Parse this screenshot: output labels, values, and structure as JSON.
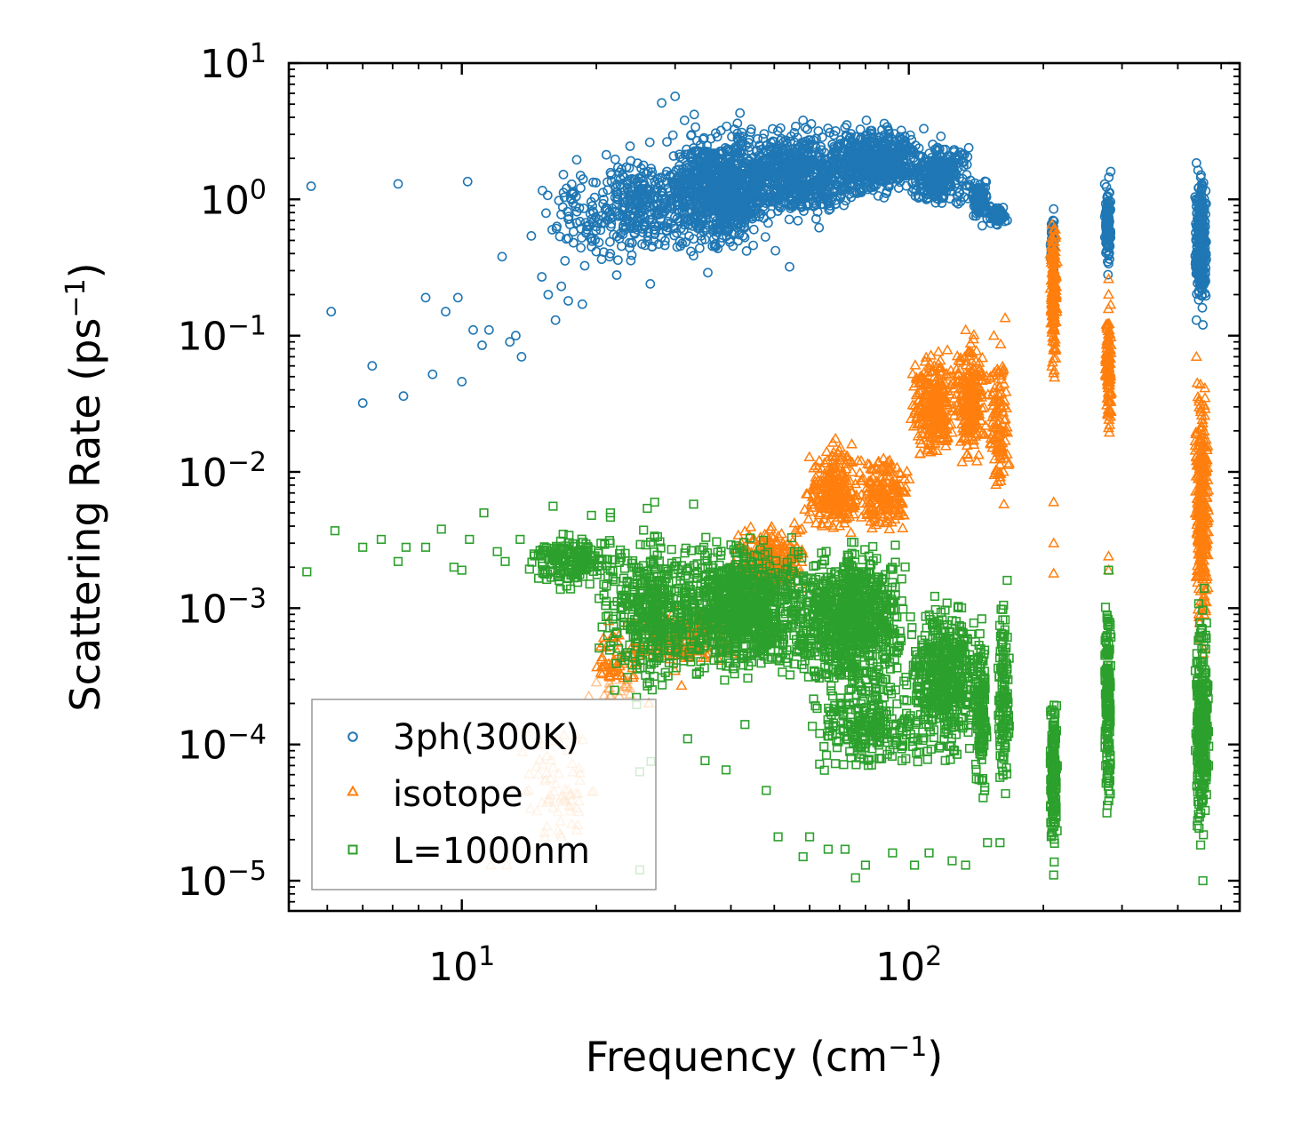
{
  "chart_data": {
    "type": "scatter",
    "title": "",
    "xlabel": "Frequency (cm",
    "xlabel_sup": "−1",
    "xlabel_end": ")",
    "ylabel": "Scattering Rate (ps",
    "ylabel_sup": "−1",
    "ylabel_end": ")",
    "xscale": "log",
    "yscale": "log",
    "xlim": [
      4.1,
      550
    ],
    "ylim": [
      6e-06,
      10
    ],
    "x_ticks": [
      {
        "base": "10",
        "exp": "1",
        "value": 10
      },
      {
        "base": "10",
        "exp": "2",
        "value": 100
      }
    ],
    "y_ticks": [
      {
        "base": "10",
        "exp": "1",
        "value": 10
      },
      {
        "base": "10",
        "exp": "0",
        "value": 1
      },
      {
        "base": "10",
        "exp": "−1",
        "value": 0.1
      },
      {
        "base": "10",
        "exp": "−2",
        "value": 0.01
      },
      {
        "base": "10",
        "exp": "−3",
        "value": 0.001
      },
      {
        "base": "10",
        "exp": "−4",
        "value": 0.0001
      },
      {
        "base": "10",
        "exp": "−5",
        "value": 1e-05
      }
    ],
    "legend_position": "bottom-left",
    "series": [
      {
        "name": "3ph(300K)",
        "marker": "circle",
        "color": "#1f77b4",
        "points": [
          [
            4.6,
            1.25
          ],
          [
            5.1,
            0.15
          ],
          [
            6,
            0.032
          ],
          [
            6.3,
            0.06
          ],
          [
            7.2,
            1.3
          ],
          [
            7.4,
            0.036
          ],
          [
            8.3,
            0.19
          ],
          [
            8.6,
            0.052
          ],
          [
            9.2,
            0.15
          ],
          [
            9.8,
            0.19
          ],
          [
            10,
            0.046
          ],
          [
            10.3,
            1.35
          ],
          [
            10.6,
            0.11
          ],
          [
            11.1,
            0.085
          ],
          [
            11.5,
            0.11
          ],
          [
            12.3,
            0.38
          ],
          [
            12.8,
            0.09
          ],
          [
            13.2,
            0.1
          ],
          [
            13.6,
            0.07
          ],
          [
            14.3,
            0.54
          ],
          [
            15.1,
            0.27
          ],
          [
            15.6,
            0.2
          ],
          [
            16.2,
            0.13
          ],
          [
            16.7,
            0.23
          ],
          [
            17.3,
            0.18
          ],
          [
            18.6,
            0.17
          ],
          [
            19.5,
            0.45
          ],
          [
            21.4,
            0.38
          ],
          [
            24,
            0.39
          ],
          [
            26.4,
            0.24
          ],
          [
            28,
            5.1
          ],
          [
            30,
            5.7
          ],
          [
            31.5,
            3.8
          ],
          [
            33.1,
            4.2
          ],
          [
            35.5,
            0.29
          ],
          [
            38,
            3.2
          ],
          [
            41.9,
            4.3
          ],
          [
            45,
            0.6
          ],
          [
            50.3,
            0.42
          ],
          [
            54.1,
            0.32
          ],
          [
            58,
            3.8
          ],
          [
            63,
            0.62
          ],
          [
            71.5,
            1.5
          ],
          [
            80.4,
            3.8
          ],
          [
            89.5,
            3.4
          ],
          [
            98,
            2.9
          ],
          [
            108,
            3.3
          ],
          [
            118,
            2.9
          ],
          [
            126,
            2.3
          ],
          [
            135,
            1.8
          ],
          [
            146,
            0.64
          ],
          [
            158,
            0.75
          ],
          [
            166,
            0.7
          ],
          [
            211,
            0.3
          ],
          [
            211,
            0.85
          ],
          [
            211,
            0.4
          ],
          [
            279,
            1.05
          ],
          [
            283,
            1.6
          ],
          [
            279,
            0.28
          ],
          [
            279,
            0.55
          ],
          [
            440,
            1.85
          ],
          [
            440,
            0.13
          ],
          [
            440,
            0.5
          ],
          [
            455,
            0.9
          ],
          [
            455,
            0.12
          ]
        ],
        "clusters": [
          {
            "x": [
              15,
              25
            ],
            "y": [
              0.2,
              2.5
            ],
            "n": 110
          },
          {
            "x": [
              20,
              32
            ],
            "y": [
              0.3,
              3.0
            ],
            "n": 240
          },
          {
            "x": [
              28,
              50
            ],
            "y": [
              0.35,
              4.0
            ],
            "n": 900
          },
          {
            "x": [
              40,
              80
            ],
            "y": [
              0.6,
              4.0
            ],
            "n": 700
          },
          {
            "x": [
              65,
              110
            ],
            "y": [
              0.9,
              4.0
            ],
            "n": 500
          },
          {
            "x": [
              100,
              140
            ],
            "y": [
              0.8,
              2.9
            ],
            "n": 260
          },
          {
            "x": [
              138,
              150
            ],
            "y": [
              0.62,
              1.5
            ],
            "n": 120
          },
          {
            "x": [
              150,
              165
            ],
            "y": [
              0.62,
              0.95
            ],
            "n": 70
          },
          {
            "x": [
              207,
              213
            ],
            "y": [
              0.3,
              0.9
            ],
            "n": 40
          },
          {
            "x": [
              274,
              284
            ],
            "y": [
              0.28,
              1.6
            ],
            "n": 140
          },
          {
            "x": [
              436,
              465
            ],
            "y": [
              0.12,
              1.9
            ],
            "n": 320
          }
        ]
      },
      {
        "name": "isotope",
        "marker": "triangle",
        "color": "#ff7f0e",
        "points": [
          [
            11.6,
            1.3e-05
          ],
          [
            12.6,
            1.3e-05
          ],
          [
            15.5,
            2.5e-05
          ],
          [
            16.6,
            2.2e-05
          ],
          [
            17.6,
            2.6e-05
          ],
          [
            26.2,
            0.0002
          ],
          [
            31,
            0.00027
          ],
          [
            44,
            0.0034
          ],
          [
            55,
            0.0024
          ],
          [
            62,
            0.0042
          ],
          [
            154,
            0.023
          ],
          [
            211,
            0.006
          ],
          [
            211,
            0.003
          ],
          [
            211,
            0.0018
          ],
          [
            211,
            0.053
          ],
          [
            211,
            0.068
          ],
          [
            211,
            0.28
          ],
          [
            211,
            0.17
          ],
          [
            280,
            0.0019
          ],
          [
            280,
            0.0024
          ],
          [
            280,
            0.2
          ],
          [
            280,
            0.26
          ],
          [
            280,
            0.05
          ],
          [
            280,
            0.021
          ],
          [
            440,
            0.07
          ],
          [
            440,
            0.012
          ],
          [
            458,
            0.0009
          ],
          [
            458,
            0.0005
          ],
          [
            155,
            0.1
          ],
          [
            157,
            0.018
          ]
        ],
        "clusters": [
          {
            "x": [
              13.6,
              20
            ],
            "y": [
              1.3e-05,
              0.00018
            ],
            "n": 70
          },
          {
            "x": [
              19,
              26
            ],
            "y": [
              0.00015,
              0.0009
            ],
            "n": 70
          },
          {
            "x": [
              24,
              42
            ],
            "y": [
              0.00032,
              0.0012
            ],
            "n": 200
          },
          {
            "x": [
              40,
              60
            ],
            "y": [
              0.001,
              0.005
            ],
            "n": 220
          },
          {
            "x": [
              58,
              80
            ],
            "y": [
              0.003,
              0.018
            ],
            "n": 260
          },
          {
            "x": [
              78,
              102
            ],
            "y": [
              0.003,
              0.015
            ],
            "n": 180
          },
          {
            "x": [
              100,
              128
            ],
            "y": [
              0.01,
              0.09
            ],
            "n": 260
          },
          {
            "x": [
              126,
              150
            ],
            "y": [
              0.01,
              0.12
            ],
            "n": 230
          },
          {
            "x": [
              150,
              168
            ],
            "y": [
              0.004,
              0.15
            ],
            "n": 110
          },
          {
            "x": [
              207,
              215
            ],
            "y": [
              0.04,
              1.2
            ],
            "n": 150
          },
          {
            "x": [
              275,
              285
            ],
            "y": [
              0.015,
              0.25
            ],
            "n": 120
          },
          {
            "x": [
              436,
              470
            ],
            "y": [
              0.0004,
              0.09
            ],
            "n": 300
          }
        ]
      },
      {
        "name": "L=1000nm",
        "marker": "square",
        "color": "#2ca02c",
        "points": [
          [
            4.5,
            0.00185
          ],
          [
            5.2,
            0.0037
          ],
          [
            6,
            0.0028
          ],
          [
            6.6,
            0.0032
          ],
          [
            7.2,
            0.0022
          ],
          [
            7.5,
            0.0028
          ],
          [
            8.3,
            0.0028
          ],
          [
            9,
            0.0038
          ],
          [
            9.6,
            0.002
          ],
          [
            10,
            0.0019
          ],
          [
            10.4,
            0.0032
          ],
          [
            11.2,
            0.005
          ],
          [
            12,
            0.0026
          ],
          [
            12.5,
            0.0022
          ],
          [
            13.5,
            0.0032
          ],
          [
            14.5,
            0.0025
          ],
          [
            16,
            0.0056
          ],
          [
            16.4,
            0.0017
          ],
          [
            19.5,
            0.0048
          ],
          [
            21.5,
            0.005
          ],
          [
            26,
            0.0054
          ],
          [
            27,
            0.006
          ],
          [
            33,
            0.0058
          ],
          [
            25,
            1.2e-05
          ],
          [
            25,
            6.3e-05
          ],
          [
            26.5,
            7.5e-05
          ],
          [
            32,
            0.00011
          ],
          [
            35,
            7.6e-05
          ],
          [
            39,
            6.5e-05
          ],
          [
            43,
            0.00014
          ],
          [
            48,
            4.6e-05
          ],
          [
            51,
            2.1e-05
          ],
          [
            58,
            1.5e-05
          ],
          [
            60,
            2.1e-05
          ],
          [
            66,
            1.7e-05
          ],
          [
            72,
            1.7e-05
          ],
          [
            76,
            1.05e-05
          ],
          [
            80,
            1.3e-05
          ],
          [
            92,
            1.6e-05
          ],
          [
            103,
            1.3e-05
          ],
          [
            111,
            1.6e-05
          ],
          [
            125,
            1.4e-05
          ],
          [
            134,
            1.3e-05
          ],
          [
            150,
            1.9e-05
          ],
          [
            160,
            1.9e-05
          ],
          [
            166,
            0.0016
          ],
          [
            211,
            1.1e-05
          ],
          [
            280,
            0.0019
          ],
          [
            455,
            1e-05
          ],
          [
            458,
            0.0014
          ]
        ],
        "clusters": [
          {
            "x": [
              14,
              22
            ],
            "y": [
              0.0013,
              0.0038
            ],
            "n": 180
          },
          {
            "x": [
              20,
              35
            ],
            "y": [
              0.00018,
              0.005
            ],
            "n": 450
          },
          {
            "x": [
              30,
              60
            ],
            "y": [
              0.00025,
              0.004
            ],
            "n": 900
          },
          {
            "x": [
              55,
              100
            ],
            "y": [
              0.0002,
              0.0035
            ],
            "n": 800
          },
          {
            "x": [
              60,
              110
            ],
            "y": [
              5e-05,
              0.0004
            ],
            "n": 250
          },
          {
            "x": [
              100,
              145
            ],
            "y": [
              6e-05,
              0.0015
            ],
            "n": 500
          },
          {
            "x": [
              140,
              150
            ],
            "y": [
              3e-05,
              0.0012
            ],
            "n": 130
          },
          {
            "x": [
              158,
              168
            ],
            "y": [
              3e-05,
              0.0015
            ],
            "n": 120
          },
          {
            "x": [
              207,
              215
            ],
            "y": [
              1.2e-05,
              0.00028
            ],
            "n": 170
          },
          {
            "x": [
              274,
              284
            ],
            "y": [
              2e-05,
              0.0019
            ],
            "n": 170
          },
          {
            "x": [
              436,
              470
            ],
            "y": [
              1.5e-05,
              0.0014
            ],
            "n": 320
          }
        ]
      }
    ]
  }
}
